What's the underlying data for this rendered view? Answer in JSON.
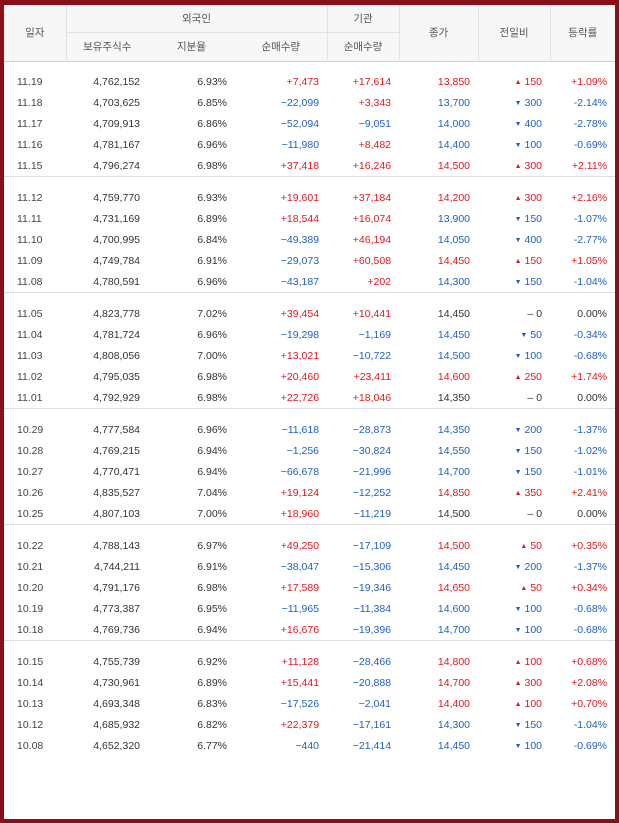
{
  "header": {
    "date": "일자",
    "foreign_group": "외국인",
    "institution_group": "기관",
    "close": "종가",
    "change": "전일비",
    "rate": "등락률",
    "holdings": "보유주식수",
    "ratio": "지분율",
    "foreign_net": "순매수량",
    "inst_net": "순매수량"
  },
  "icons": {
    "up": "triangle-up-icon",
    "down": "triangle-down-icon",
    "flat": "dash-icon"
  },
  "colors": {
    "up": "#e0181d",
    "down": "#1f5fc4",
    "frame": "#8b0f18"
  },
  "groups": [
    [
      {
        "date": "11.19",
        "holdings": "4,762,152",
        "ratio": "6.93%",
        "foreign_net": "+7,473",
        "inst_net": "+17,614",
        "close": "13,850",
        "dir": "up",
        "change": "150",
        "rate": "+1.09%"
      },
      {
        "date": "11.18",
        "holdings": "4,703,625",
        "ratio": "6.85%",
        "foreign_net": "−22,099",
        "inst_net": "+3,343",
        "close": "13,700",
        "dir": "down",
        "change": "300",
        "rate": "-2.14%"
      },
      {
        "date": "11.17",
        "holdings": "4,709,913",
        "ratio": "6.86%",
        "foreign_net": "−52,094",
        "inst_net": "−9,051",
        "close": "14,000",
        "dir": "down",
        "change": "400",
        "rate": "-2.78%"
      },
      {
        "date": "11.16",
        "holdings": "4,781,167",
        "ratio": "6.96%",
        "foreign_net": "−11,980",
        "inst_net": "+8,482",
        "close": "14,400",
        "dir": "down",
        "change": "100",
        "rate": "-0.69%"
      },
      {
        "date": "11.15",
        "holdings": "4,796,274",
        "ratio": "6.98%",
        "foreign_net": "+37,418",
        "inst_net": "+16,246",
        "close": "14,500",
        "dir": "up",
        "change": "300",
        "rate": "+2.11%"
      }
    ],
    [
      {
        "date": "11.12",
        "holdings": "4,759,770",
        "ratio": "6.93%",
        "foreign_net": "+19,601",
        "inst_net": "+37,184",
        "close": "14,200",
        "dir": "up",
        "change": "300",
        "rate": "+2.16%"
      },
      {
        "date": "11.11",
        "holdings": "4,731,169",
        "ratio": "6.89%",
        "foreign_net": "+18,544",
        "inst_net": "+16,074",
        "close": "13,900",
        "dir": "down",
        "change": "150",
        "rate": "-1.07%"
      },
      {
        "date": "11.10",
        "holdings": "4,700,995",
        "ratio": "6.84%",
        "foreign_net": "−49,389",
        "inst_net": "+46,194",
        "close": "14,050",
        "dir": "down",
        "change": "400",
        "rate": "-2.77%"
      },
      {
        "date": "11.09",
        "holdings": "4,749,784",
        "ratio": "6.91%",
        "foreign_net": "−29,073",
        "inst_net": "+60,508",
        "close": "14,450",
        "dir": "up",
        "change": "150",
        "rate": "+1.05%"
      },
      {
        "date": "11.08",
        "holdings": "4,780,591",
        "ratio": "6.96%",
        "foreign_net": "−43,187",
        "inst_net": "+202",
        "close": "14,300",
        "dir": "down",
        "change": "150",
        "rate": "-1.04%"
      }
    ],
    [
      {
        "date": "11.05",
        "holdings": "4,823,778",
        "ratio": "7.02%",
        "foreign_net": "+39,454",
        "inst_net": "+10,441",
        "close": "14,450",
        "dir": "flat",
        "change": "0",
        "rate": "0.00%"
      },
      {
        "date": "11.04",
        "holdings": "4,781,724",
        "ratio": "6.96%",
        "foreign_net": "−19,298",
        "inst_net": "−1,169",
        "close": "14,450",
        "dir": "down",
        "change": "50",
        "rate": "-0.34%"
      },
      {
        "date": "11.03",
        "holdings": "4,808,056",
        "ratio": "7.00%",
        "foreign_net": "+13,021",
        "inst_net": "−10,722",
        "close": "14,500",
        "dir": "down",
        "change": "100",
        "rate": "-0.68%"
      },
      {
        "date": "11.02",
        "holdings": "4,795,035",
        "ratio": "6.98%",
        "foreign_net": "+20,460",
        "inst_net": "+23,411",
        "close": "14,600",
        "dir": "up",
        "change": "250",
        "rate": "+1.74%"
      },
      {
        "date": "11.01",
        "holdings": "4,792,929",
        "ratio": "6.98%",
        "foreign_net": "+22,726",
        "inst_net": "+18,046",
        "close": "14,350",
        "dir": "flat",
        "change": "0",
        "rate": "0.00%"
      }
    ],
    [
      {
        "date": "10.29",
        "holdings": "4,777,584",
        "ratio": "6.96%",
        "foreign_net": "−11,618",
        "inst_net": "−28,873",
        "close": "14,350",
        "dir": "down",
        "change": "200",
        "rate": "-1.37%"
      },
      {
        "date": "10.28",
        "holdings": "4,769,215",
        "ratio": "6.94%",
        "foreign_net": "−1,256",
        "inst_net": "−30,824",
        "close": "14,550",
        "dir": "down",
        "change": "150",
        "rate": "-1.02%"
      },
      {
        "date": "10.27",
        "holdings": "4,770,471",
        "ratio": "6.94%",
        "foreign_net": "−66,678",
        "inst_net": "−21,996",
        "close": "14,700",
        "dir": "down",
        "change": "150",
        "rate": "-1.01%"
      },
      {
        "date": "10.26",
        "holdings": "4,835,527",
        "ratio": "7.04%",
        "foreign_net": "+19,124",
        "inst_net": "−12,252",
        "close": "14,850",
        "dir": "up",
        "change": "350",
        "rate": "+2.41%"
      },
      {
        "date": "10.25",
        "holdings": "4,807,103",
        "ratio": "7.00%",
        "foreign_net": "+18,960",
        "inst_net": "−11,219",
        "close": "14,500",
        "dir": "flat",
        "change": "0",
        "rate": "0.00%"
      }
    ],
    [
      {
        "date": "10.22",
        "holdings": "4,788,143",
        "ratio": "6.97%",
        "foreign_net": "+49,250",
        "inst_net": "−17,109",
        "close": "14,500",
        "dir": "up",
        "change": "50",
        "rate": "+0.35%"
      },
      {
        "date": "10.21",
        "holdings": "4,744,211",
        "ratio": "6.91%",
        "foreign_net": "−38,047",
        "inst_net": "−15,306",
        "close": "14,450",
        "dir": "down",
        "change": "200",
        "rate": "-1.37%"
      },
      {
        "date": "10.20",
        "holdings": "4,791,176",
        "ratio": "6.98%",
        "foreign_net": "+17,589",
        "inst_net": "−19,346",
        "close": "14,650",
        "dir": "up",
        "change": "50",
        "rate": "+0.34%"
      },
      {
        "date": "10.19",
        "holdings": "4,773,387",
        "ratio": "6.95%",
        "foreign_net": "−11,965",
        "inst_net": "−11,384",
        "close": "14,600",
        "dir": "down",
        "change": "100",
        "rate": "-0.68%"
      },
      {
        "date": "10.18",
        "holdings": "4,769,736",
        "ratio": "6.94%",
        "foreign_net": "+16,676",
        "inst_net": "−19,396",
        "close": "14,700",
        "dir": "down",
        "change": "100",
        "rate": "-0.68%"
      }
    ],
    [
      {
        "date": "10.15",
        "holdings": "4,755,739",
        "ratio": "6.92%",
        "foreign_net": "+11,128",
        "inst_net": "−28,466",
        "close": "14,800",
        "dir": "up",
        "change": "100",
        "rate": "+0.68%"
      },
      {
        "date": "10.14",
        "holdings": "4,730,961",
        "ratio": "6.89%",
        "foreign_net": "+15,441",
        "inst_net": "−20,888",
        "close": "14,700",
        "dir": "up",
        "change": "300",
        "rate": "+2.08%"
      },
      {
        "date": "10.13",
        "holdings": "4,693,348",
        "ratio": "6.83%",
        "foreign_net": "−17,526",
        "inst_net": "−2,041",
        "close": "14,400",
        "dir": "up",
        "change": "100",
        "rate": "+0.70%"
      },
      {
        "date": "10.12",
        "holdings": "4,685,932",
        "ratio": "6.82%",
        "foreign_net": "+22,379",
        "inst_net": "−17,161",
        "close": "14,300",
        "dir": "down",
        "change": "150",
        "rate": "-1.04%"
      },
      {
        "date": "10.08",
        "holdings": "4,652,320",
        "ratio": "6.77%",
        "foreign_net": "−440",
        "inst_net": "−21,414",
        "close": "14,450",
        "dir": "down",
        "change": "100",
        "rate": "-0.69%"
      }
    ]
  ]
}
